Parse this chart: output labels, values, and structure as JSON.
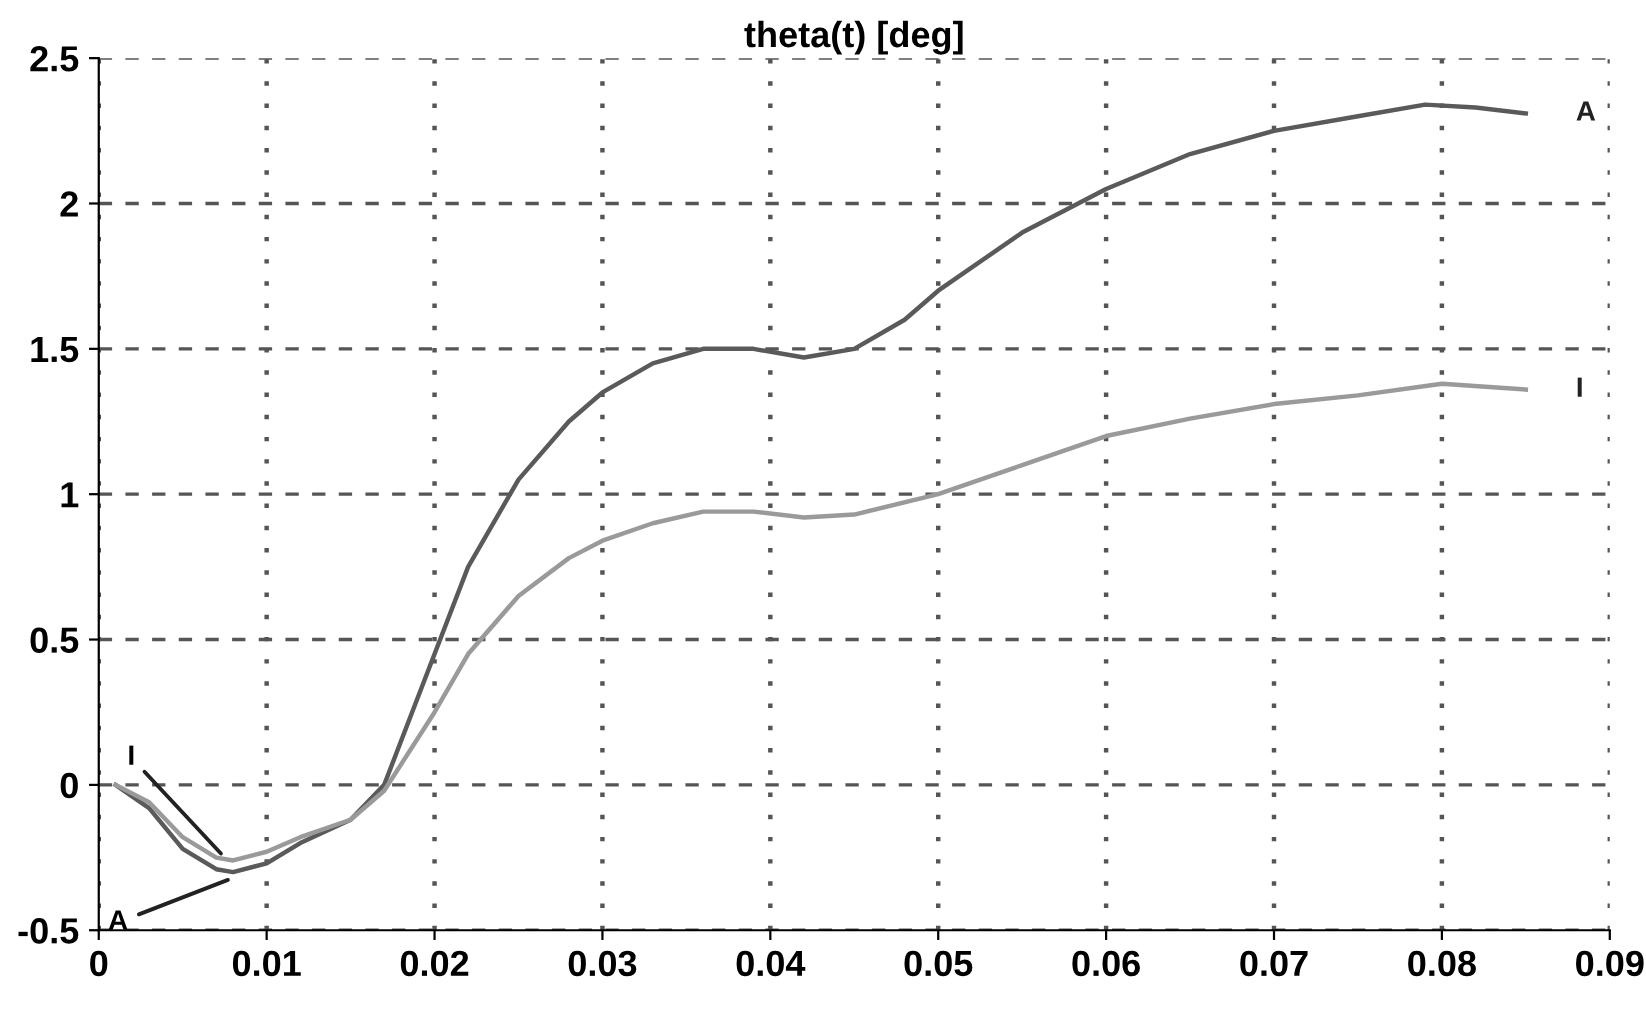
{
  "chart_data": {
    "type": "line",
    "title": "theta(t) [deg]",
    "xlim": [
      0,
      0.09
    ],
    "xticks": [
      0,
      0.01,
      0.02,
      0.03,
      0.04,
      0.05,
      0.06,
      0.07,
      0.08,
      0.09
    ],
    "ylim": [
      -0.5,
      2.5
    ],
    "yticks": [
      -0.5,
      0,
      0.5,
      1,
      1.5,
      2,
      2.5
    ],
    "grid": true,
    "legend": false,
    "series": [
      {
        "name": "A",
        "color": "#5a5a5a",
        "x": [
          0.001,
          0.003,
          0.005,
          0.007,
          0.008,
          0.01,
          0.012,
          0.015,
          0.017,
          0.02,
          0.022,
          0.025,
          0.028,
          0.03,
          0.033,
          0.036,
          0.039,
          0.042,
          0.045,
          0.048,
          0.05,
          0.055,
          0.06,
          0.065,
          0.07,
          0.075,
          0.079,
          0.082,
          0.085
        ],
        "values": [
          0,
          -0.08,
          -0.22,
          -0.29,
          -0.3,
          -0.27,
          -0.2,
          -0.12,
          0.0,
          0.45,
          0.75,
          1.05,
          1.25,
          1.35,
          1.45,
          1.5,
          1.5,
          1.47,
          1.5,
          1.6,
          1.7,
          1.9,
          2.05,
          2.17,
          2.25,
          2.3,
          2.34,
          2.33,
          2.31
        ]
      },
      {
        "name": "I",
        "color": "#9a9a9a",
        "x": [
          0.001,
          0.003,
          0.005,
          0.007,
          0.008,
          0.01,
          0.012,
          0.015,
          0.017,
          0.02,
          0.022,
          0.025,
          0.028,
          0.03,
          0.033,
          0.036,
          0.039,
          0.042,
          0.045,
          0.05,
          0.055,
          0.06,
          0.065,
          0.07,
          0.075,
          0.08,
          0.085
        ],
        "values": [
          0,
          -0.06,
          -0.18,
          -0.25,
          -0.26,
          -0.23,
          -0.18,
          -0.12,
          -0.02,
          0.25,
          0.45,
          0.65,
          0.78,
          0.84,
          0.9,
          0.94,
          0.94,
          0.92,
          0.93,
          1.0,
          1.1,
          1.2,
          1.26,
          1.31,
          1.34,
          1.38,
          1.36
        ]
      }
    ],
    "annotations": [
      {
        "text": "I",
        "x": 0.0075,
        "y": -0.25
      },
      {
        "text": "A",
        "x": 0.008,
        "y": -0.32
      }
    ]
  }
}
